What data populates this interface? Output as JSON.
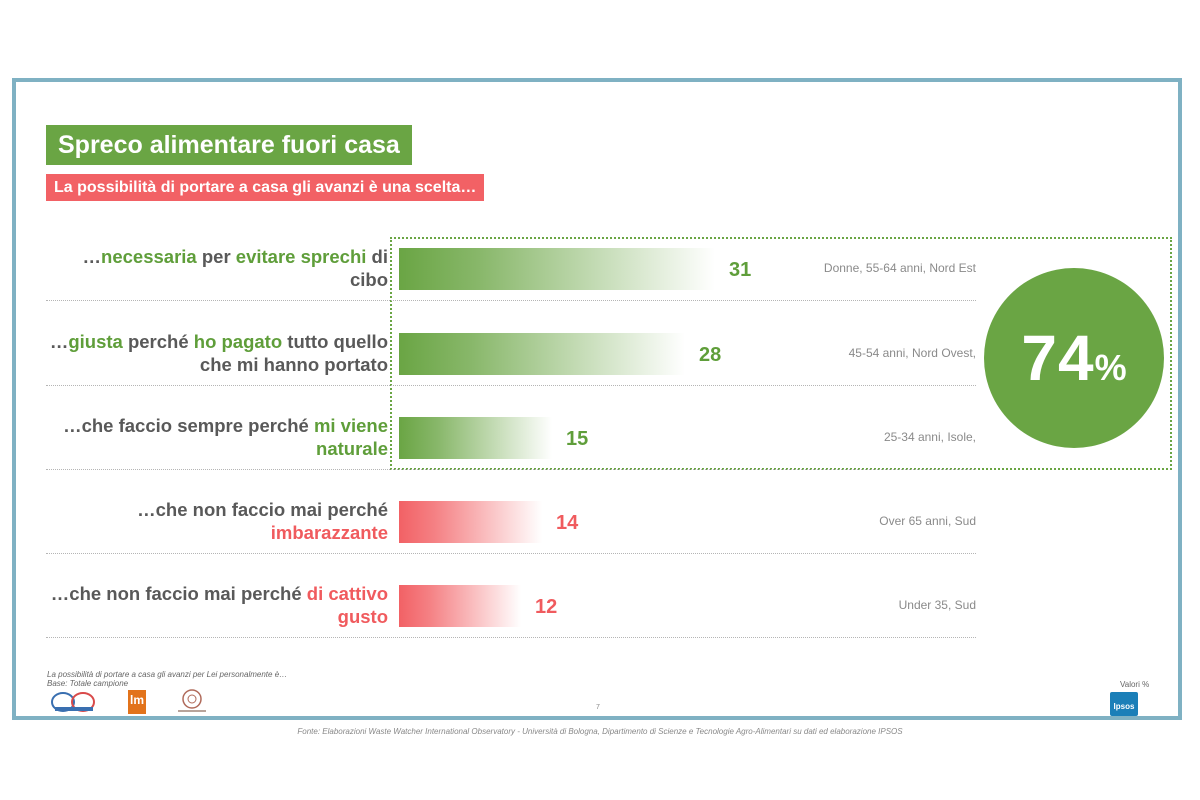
{
  "title": "Spreco alimentare fuori casa",
  "subtitle": "La possibilità di portare a casa gli avanzi è una scelta…",
  "colors": {
    "green": "#6aa544",
    "red": "#f26165",
    "frame": "#7fb1c3"
  },
  "chart_data": {
    "type": "bar",
    "orientation": "horizontal",
    "unit": "Valori %",
    "categories": [
      "…necessaria per evitare sprechi di cibo",
      "…giusta perché ho pagato tutto quello che mi hanno portato",
      "…che faccio sempre perché mi viene naturale",
      "…che non faccio mai perché imbarazzante",
      "…che non faccio mai perché di cattivo gusto"
    ],
    "values": [
      31,
      28,
      15,
      14,
      12
    ],
    "groups": [
      "positive",
      "positive",
      "positive",
      "negative",
      "negative"
    ],
    "xlim": [
      0,
      100
    ],
    "rows": [
      {
        "label_parts": [
          {
            "t": "…",
            "c": "plain"
          },
          {
            "t": "necessaria",
            "c": "green"
          },
          {
            "t": " per ",
            "c": "plain"
          },
          {
            "t": "evitare sprechi",
            "c": "green"
          },
          {
            "t": " di cibo",
            "c": "plain"
          }
        ],
        "value": 31,
        "value_label": "31",
        "color": "green",
        "demographic": "Donne, 55-64 anni, Nord Est"
      },
      {
        "label_parts": [
          {
            "t": "…",
            "c": "plain"
          },
          {
            "t": "giusta",
            "c": "green"
          },
          {
            "t": " perché ",
            "c": "plain"
          },
          {
            "t": "ho pagato",
            "c": "green"
          },
          {
            "t": " tutto quello che mi hanno portato",
            "c": "plain"
          }
        ],
        "value": 28,
        "value_label": "28",
        "color": "green",
        "demographic": "45-54 anni, Nord Ovest,"
      },
      {
        "label_parts": [
          {
            "t": "…che faccio sempre perché ",
            "c": "plain"
          },
          {
            "t": "mi viene naturale",
            "c": "green"
          }
        ],
        "value": 15,
        "value_label": "15",
        "color": "green",
        "demographic": "25-34 anni, Isole,"
      },
      {
        "label_parts": [
          {
            "t": "…che non faccio mai perché ",
            "c": "plain"
          },
          {
            "t": "imbarazzante",
            "c": "red"
          }
        ],
        "value": 14,
        "value_label": "14",
        "color": "red",
        "demographic": "Over 65 anni, Sud"
      },
      {
        "label_parts": [
          {
            "t": "…che non faccio mai perché ",
            "c": "plain"
          },
          {
            "t": "di cattivo gusto",
            "c": "red"
          }
        ],
        "value": 12,
        "value_label": "12",
        "color": "red",
        "demographic": "Under 35, Sud"
      }
    ],
    "summary": {
      "value": 74,
      "number": "74",
      "suffix": "%"
    }
  },
  "footnote": {
    "question": "La possibilità di portare a casa gli avanzi per Lei personalmente è…",
    "base": "Base: Totale campione"
  },
  "units_label": "Valori %",
  "page_number": "7",
  "source": "Fonte: Elaborazioni Waste Watcher International Observatory - Università di Bologna, Dipartimento di Scienze e Tecnologie Agro-Alimentari su dati ed elaborazione IPSOS",
  "logos": {
    "ipsos": "Ipsos",
    "lm": "lm"
  }
}
